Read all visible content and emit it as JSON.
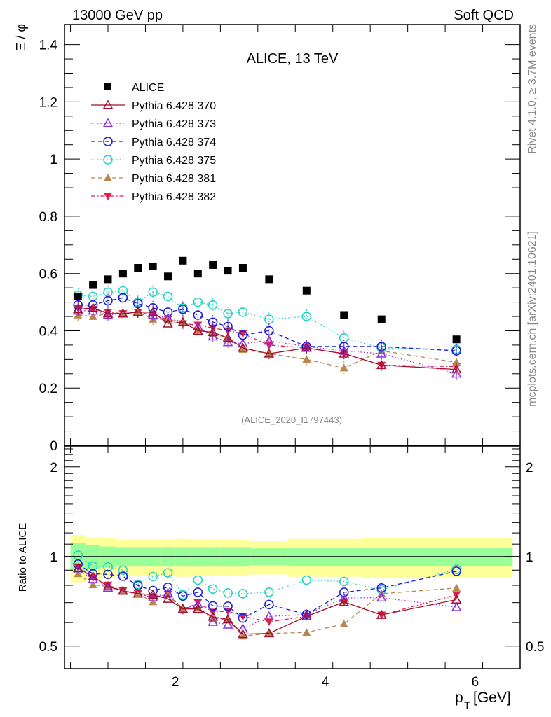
{
  "header": {
    "left": "13000 GeV pp",
    "right": "Soft QCD"
  },
  "side_labels": {
    "rivet": "Rivet 4.1.0, ≥ 3.7M events",
    "mcplots": "mcplots.cern.ch [arXiv:2401.10621]"
  },
  "chart_data": [
    {
      "type": "scatter",
      "panel": "main",
      "title": "ALICE, 13 TeV",
      "annotation": "(ALICE_2020_I1797443)",
      "xlabel": "p_T [GeV]",
      "ylabel": "Ξ / φ",
      "xlim": [
        0.52,
        6.6
      ],
      "ylim": [
        0,
        1.47
      ],
      "yticks": [
        0,
        0.2,
        0.4,
        0.6,
        0.8,
        1,
        1.2,
        1.4
      ],
      "ytick_labels": [
        "0",
        "0.2",
        "0.4",
        "0.6",
        "0.8",
        "1",
        "1.2",
        "1.4"
      ],
      "legend_position": "top-left",
      "bin_edges": [
        0.6,
        0.8,
        1.0,
        1.2,
        1.4,
        1.6,
        1.8,
        2.0,
        2.2,
        2.4,
        2.6,
        2.8,
        3.0,
        3.5,
        4.0,
        4.5,
        5.0,
        6.5
      ],
      "x": [
        0.7,
        0.9,
        1.1,
        1.3,
        1.5,
        1.7,
        1.9,
        2.1,
        2.3,
        2.5,
        2.7,
        2.9,
        3.25,
        3.75,
        4.25,
        4.75,
        5.75
      ],
      "series": [
        {
          "name": "ALICE",
          "color": "#000000",
          "marker": "square-filled",
          "line": "none",
          "values": [
            0.52,
            0.56,
            0.58,
            0.6,
            0.62,
            0.625,
            0.59,
            0.645,
            0.6,
            0.63,
            0.61,
            0.62,
            0.58,
            0.54,
            0.455,
            0.44,
            0.37
          ]
        },
        {
          "name": "Pythia 6.428 370",
          "color": "#a50f2d",
          "marker": "triangle-up-open",
          "line": "solid",
          "values": [
            0.475,
            0.48,
            0.46,
            0.46,
            0.465,
            0.465,
            0.425,
            0.43,
            0.4,
            0.395,
            0.375,
            0.34,
            0.32,
            0.34,
            0.32,
            0.28,
            0.265
          ]
        },
        {
          "name": "Pythia 6.428 373",
          "color": "#8b2be2",
          "marker": "triangle-up-open",
          "line": "dotted",
          "values": [
            0.47,
            0.47,
            0.455,
            0.46,
            0.465,
            0.455,
            0.445,
            0.43,
            0.415,
            0.38,
            0.36,
            0.355,
            0.365,
            0.345,
            0.33,
            0.32,
            0.25
          ]
        },
        {
          "name": "Pythia 6.428 374",
          "color": "#1a1adc",
          "marker": "circle-open",
          "line": "dashed",
          "values": [
            0.49,
            0.49,
            0.505,
            0.515,
            0.495,
            0.48,
            0.465,
            0.475,
            0.455,
            0.43,
            0.415,
            0.385,
            0.4,
            0.345,
            0.345,
            0.345,
            0.33
          ]
        },
        {
          "name": "Pythia 6.428 375",
          "color": "#20d2c0",
          "marker": "circle-open",
          "line": "dotted",
          "values": [
            0.525,
            0.52,
            0.535,
            0.54,
            0.5,
            0.535,
            0.52,
            0.48,
            0.5,
            0.49,
            0.46,
            0.465,
            0.44,
            0.45,
            0.375,
            0.34,
            0.335
          ]
        },
        {
          "name": "Pythia 6.428 381",
          "color": "#b8864e",
          "marker": "triangle-up-filled",
          "line": "dashed",
          "values": [
            0.455,
            0.45,
            0.46,
            0.46,
            0.465,
            0.44,
            0.44,
            0.43,
            0.405,
            0.39,
            0.375,
            0.335,
            0.32,
            0.3,
            0.27,
            0.33,
            0.29
          ]
        },
        {
          "name": "Pythia 6.428 382",
          "color": "#e0204c",
          "marker": "triangle-down-filled",
          "line": "dashdot",
          "values": [
            0.48,
            0.475,
            0.465,
            0.46,
            0.465,
            0.455,
            0.44,
            0.425,
            0.42,
            0.41,
            0.4,
            0.39,
            0.35,
            0.34,
            0.32,
            0.28,
            0.275
          ]
        }
      ]
    },
    {
      "type": "scatter",
      "panel": "ratio",
      "ylabel": "Ratio to ALICE",
      "xlabel": "p_T [GeV]",
      "yscale": "log",
      "ylim": [
        0.42,
        2.35
      ],
      "yticks": [
        0.5,
        1,
        2
      ],
      "ytick_labels": [
        "0.5",
        "1",
        "2"
      ],
      "xticks": [
        2,
        4,
        6
      ],
      "xtick_labels": [
        "2",
        "4",
        "6"
      ],
      "reference": "ALICE",
      "stat_band_halfwidth": [
        0.11,
        0.09,
        0.08,
        0.075,
        0.075,
        0.075,
        0.075,
        0.075,
        0.075,
        0.075,
        0.075,
        0.075,
        0.065,
        0.07,
        0.07,
        0.07,
        0.07
      ],
      "total_band_halfwidth": [
        0.18,
        0.16,
        0.15,
        0.14,
        0.14,
        0.14,
        0.14,
        0.145,
        0.14,
        0.14,
        0.14,
        0.14,
        0.13,
        0.145,
        0.145,
        0.15,
        0.15
      ],
      "band_colors": {
        "stat": "#99ff99",
        "total": "#ffff99"
      }
    }
  ]
}
